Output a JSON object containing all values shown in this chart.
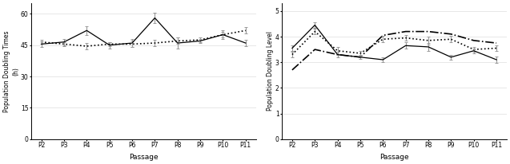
{
  "passages": [
    "P2",
    "P3",
    "P4",
    "P5",
    "P6",
    "P7",
    "P8",
    "P9",
    "P10",
    "P11"
  ],
  "pdt_solid": [
    45.5,
    46.5,
    52,
    45,
    46,
    58,
    46,
    47,
    50,
    46
  ],
  "pdt_solid_err": [
    1.2,
    1.5,
    2.0,
    1.5,
    2.0,
    2.5,
    2.5,
    1.0,
    2.0,
    1.5
  ],
  "pdt_dotted": [
    46.5,
    45.5,
    44.5,
    45.5,
    45.5,
    46,
    47,
    47.5,
    50,
    52
  ],
  "pdt_dotted_err": [
    1.0,
    1.0,
    1.5,
    1.0,
    1.5,
    1.5,
    1.5,
    1.0,
    1.5,
    1.5
  ],
  "pdl_solid": [
    3.55,
    4.45,
    3.3,
    3.2,
    3.1,
    3.65,
    3.6,
    3.2,
    3.45,
    3.1
  ],
  "pdl_solid_err": [
    0.1,
    0.12,
    0.12,
    0.08,
    0.1,
    0.12,
    0.15,
    0.1,
    0.1,
    0.12
  ],
  "pdl_dotted": [
    3.3,
    4.2,
    3.45,
    3.35,
    3.9,
    3.95,
    3.85,
    3.9,
    3.5,
    3.55
  ],
  "pdl_dotted_err": [
    0.1,
    0.12,
    0.15,
    0.1,
    0.12,
    0.12,
    0.15,
    0.12,
    0.1,
    0.12
  ],
  "pdl_dashdot": [
    2.7,
    3.5,
    3.3,
    3.2,
    4.05,
    4.2,
    4.2,
    4.1,
    3.85,
    3.75
  ],
  "left_ylabel": "Population Doubling Times\n(h)",
  "right_ylabel": "Population Doubling Level",
  "xlabel": "Passage",
  "left_yticks": [
    0,
    15,
    30,
    45,
    60
  ],
  "left_ylim": [
    0,
    65
  ],
  "right_yticks": [
    0,
    1,
    2,
    3,
    4,
    5
  ],
  "right_ylim": [
    0,
    5.3
  ],
  "line_color": "#000000",
  "err_color": "#999999",
  "grid_color": "#dddddd"
}
